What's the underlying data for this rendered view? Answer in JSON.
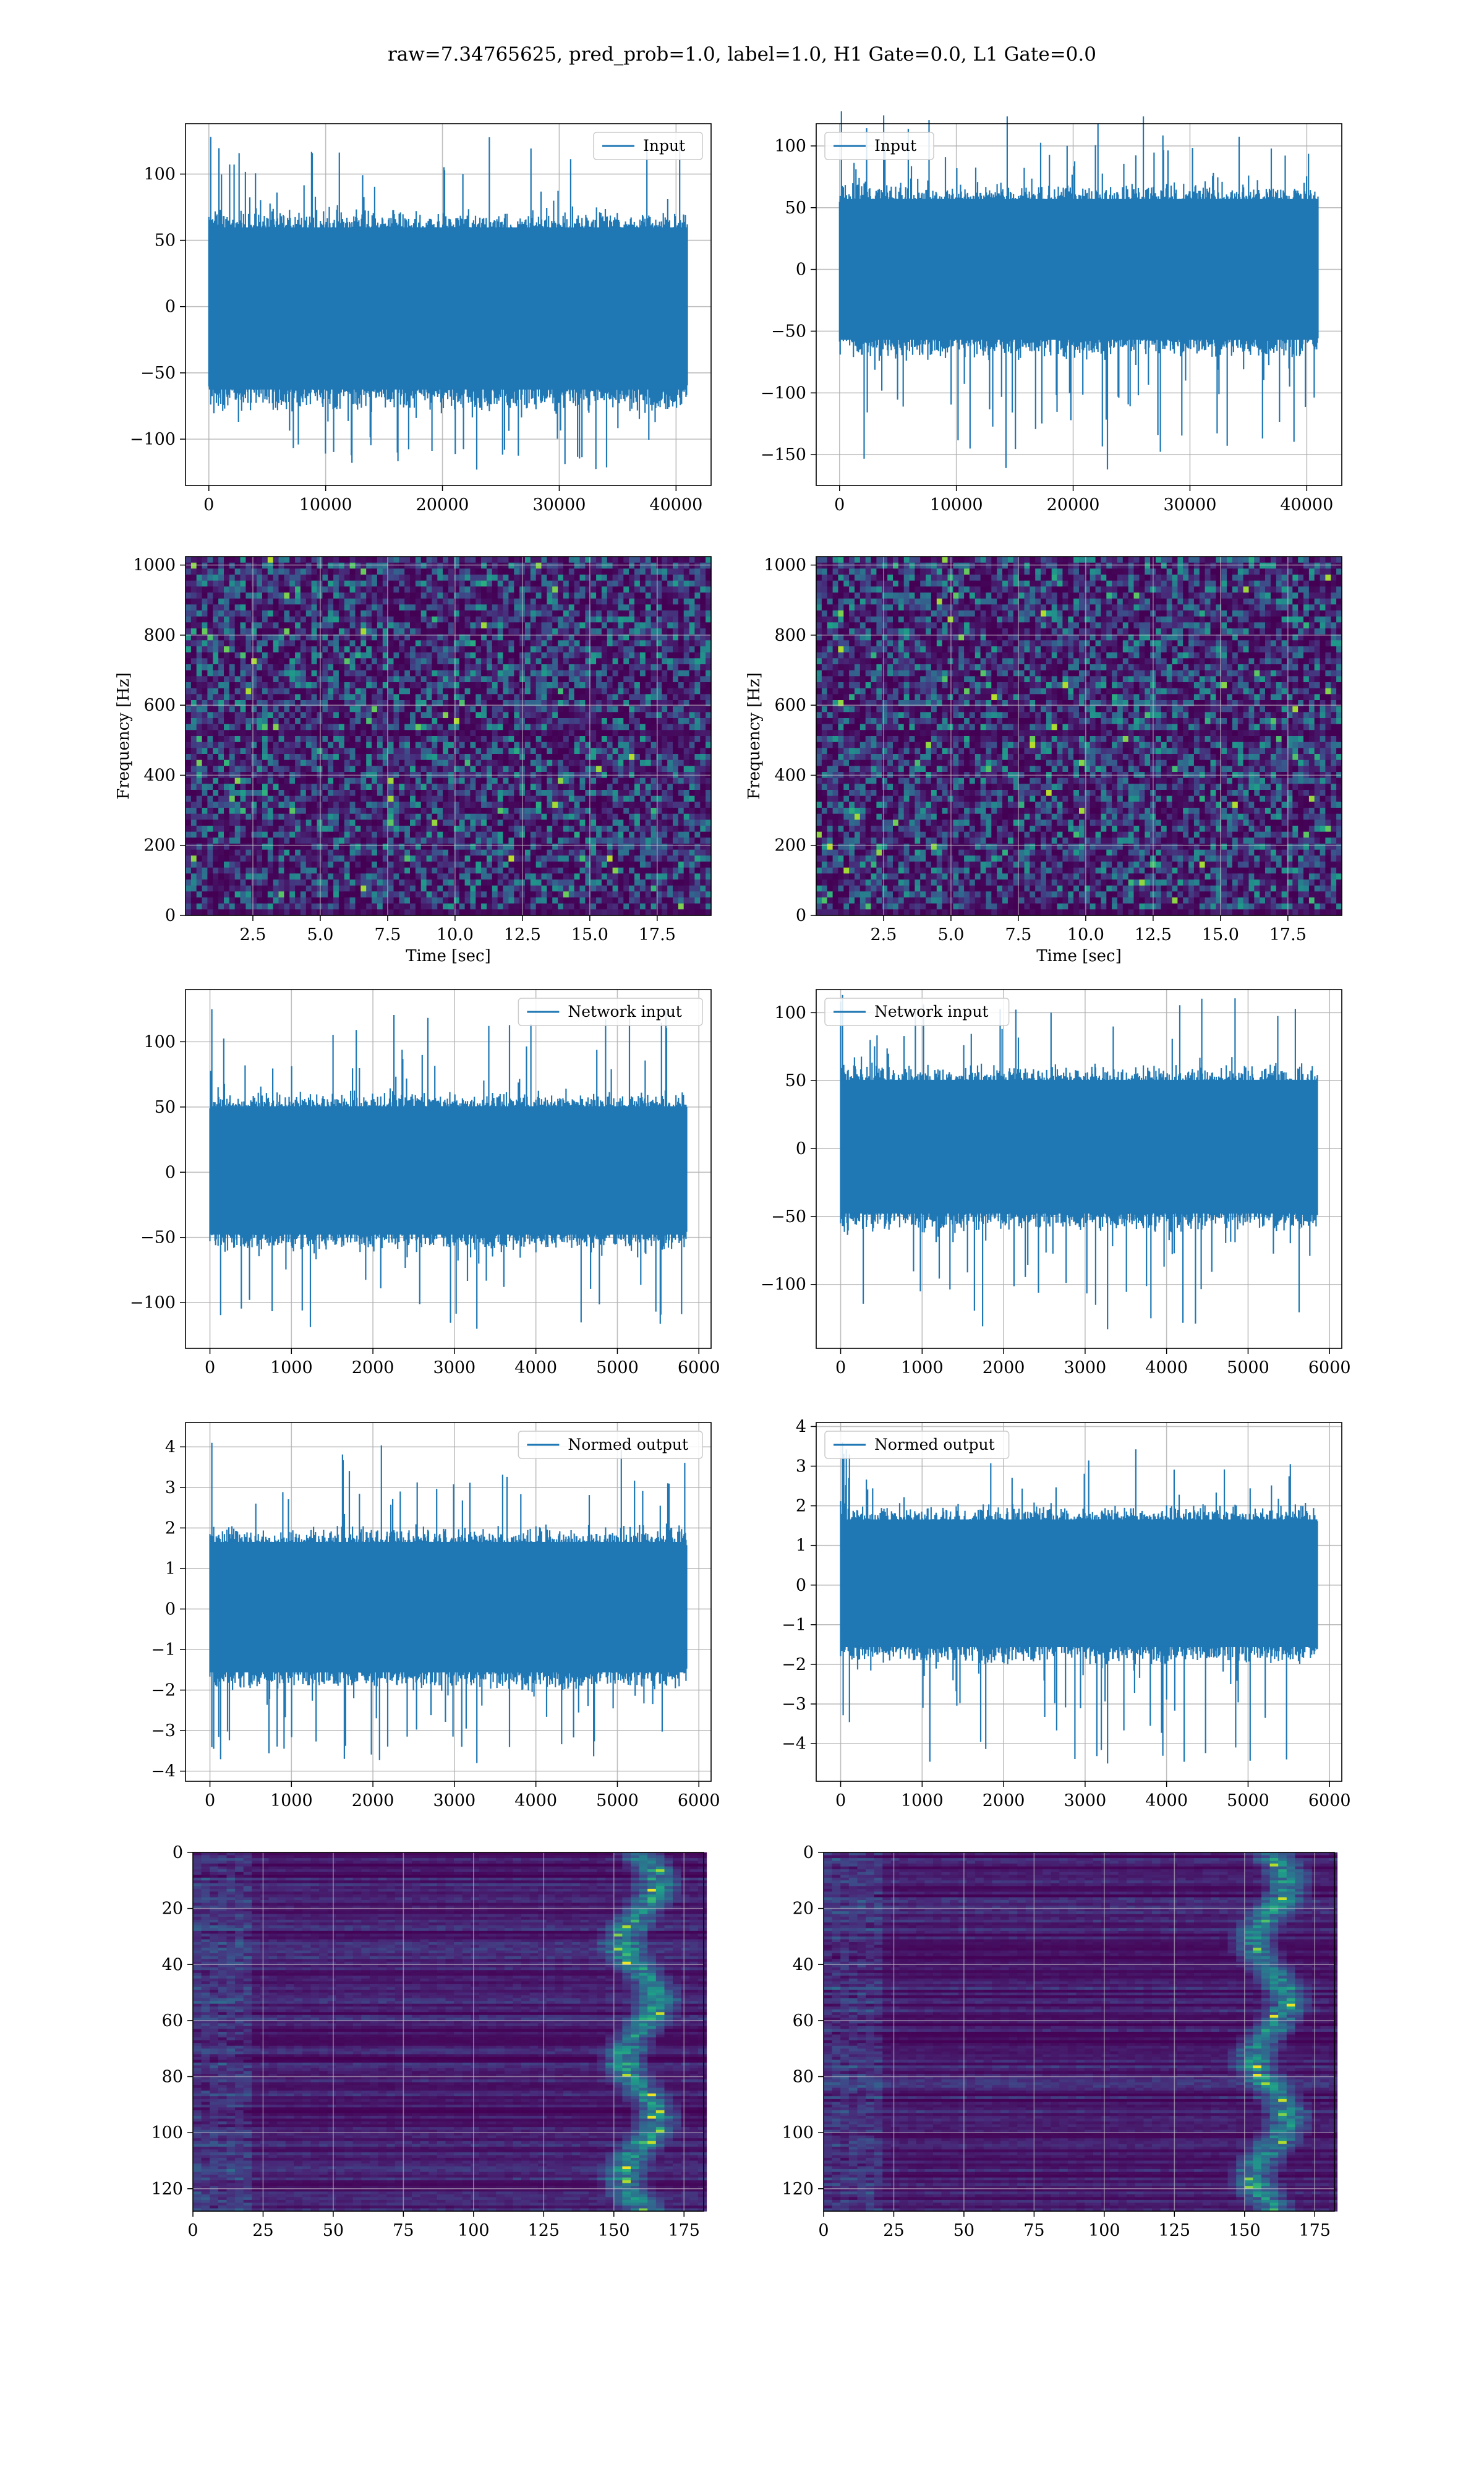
{
  "title": "raw=7.34765625, pred_prob=1.0, label=1.0, H1 Gate=0.0, L1 Gate=0.0",
  "colors": {
    "line": "#1f77b4",
    "grid": "#b0b0b0",
    "viridis_low": "#440154",
    "viridis_high": "#fde725"
  },
  "chart_data": [
    {
      "id": "input_h1",
      "type": "line",
      "legend": "Input",
      "legend_loc": "upper right",
      "xlim": [
        -2000,
        43000
      ],
      "ylim": [
        -135,
        138
      ],
      "xticks": [
        0,
        10000,
        20000,
        30000,
        40000
      ],
      "yticks": [
        -100,
        -50,
        0,
        50,
        100
      ],
      "n_samples": 40960,
      "envelope": {
        "typical_max": 65,
        "typical_min": -68,
        "peak_max": 128,
        "peak_min": -123
      }
    },
    {
      "id": "input_l1",
      "type": "line",
      "legend": "Input",
      "legend_loc": "upper left",
      "xlim": [
        -2000,
        43000
      ],
      "ylim": [
        -175,
        118
      ],
      "xticks": [
        0,
        10000,
        20000,
        30000,
        40000
      ],
      "yticks": [
        -150,
        -100,
        -50,
        0,
        50,
        100
      ],
      "n_samples": 40960,
      "envelope": {
        "typical_max": 62,
        "typical_min": -62,
        "peak_max": 128,
        "peak_min": -162
      }
    },
    {
      "id": "spec_h1",
      "type": "heatmap",
      "xlabel": "Time [sec]",
      "ylabel": "Frequency [Hz]",
      "xlim": [
        0.0,
        19.5
      ],
      "ylim": [
        0,
        1024
      ],
      "xticks": [
        2.5,
        5.0,
        7.5,
        10.0,
        12.5,
        15.0,
        17.5
      ],
      "yticks": [
        0,
        200,
        400,
        600,
        800,
        1000
      ]
    },
    {
      "id": "spec_l1",
      "type": "heatmap",
      "xlabel": "Time [sec]",
      "ylabel": "Frequency [Hz]",
      "xlim": [
        0.0,
        19.5
      ],
      "ylim": [
        0,
        1024
      ],
      "xticks": [
        2.5,
        5.0,
        7.5,
        10.0,
        12.5,
        15.0,
        17.5
      ],
      "yticks": [
        0,
        200,
        400,
        600,
        800,
        1000
      ]
    },
    {
      "id": "net_h1",
      "type": "line",
      "legend": "Network input",
      "legend_loc": "upper right",
      "xlim": [
        -300,
        6150
      ],
      "ylim": [
        -135,
        140
      ],
      "xticks": [
        0,
        1000,
        2000,
        3000,
        4000,
        5000,
        6000
      ],
      "yticks": [
        -100,
        -50,
        0,
        50,
        100
      ],
      "n_samples": 5850,
      "envelope": {
        "typical_max": 55,
        "typical_min": -52,
        "peak_max": 125,
        "peak_min": -120
      }
    },
    {
      "id": "net_l1",
      "type": "line",
      "legend": "Network input",
      "legend_loc": "upper left",
      "xlim": [
        -300,
        6150
      ],
      "ylim": [
        -147,
        117
      ],
      "xticks": [
        0,
        1000,
        2000,
        3000,
        4000,
        5000,
        6000
      ],
      "yticks": [
        -100,
        -50,
        0,
        50,
        100
      ],
      "n_samples": 5850,
      "envelope": {
        "typical_max": 55,
        "typical_min": -52,
        "peak_max": 113,
        "peak_min": -133
      }
    },
    {
      "id": "out_h1",
      "type": "line",
      "legend": "Normed output",
      "legend_loc": "upper right",
      "xlim": [
        -300,
        6150
      ],
      "ylim": [
        -4.25,
        4.6
      ],
      "xticks": [
        0,
        1000,
        2000,
        3000,
        4000,
        5000,
        6000
      ],
      "yticks": [
        -4,
        -3,
        -2,
        -1,
        0,
        1,
        2,
        3,
        4
      ],
      "n_samples": 5850,
      "envelope": {
        "typical_max": 1.8,
        "typical_min": -1.7,
        "peak_max": 4.1,
        "peak_min": -3.8
      }
    },
    {
      "id": "out_l1",
      "type": "line",
      "legend": "Normed output",
      "legend_loc": "upper left",
      "xlim": [
        -300,
        6150
      ],
      "ylim": [
        -4.95,
        4.1
      ],
      "xticks": [
        0,
        1000,
        2000,
        3000,
        4000,
        5000,
        6000
      ],
      "yticks": [
        -4,
        -3,
        -2,
        -1,
        0,
        1,
        2,
        3,
        4
      ],
      "n_samples": 5850,
      "envelope": {
        "typical_max": 1.8,
        "typical_min": -1.7,
        "peak_max": 3.6,
        "peak_min": -4.5
      }
    },
    {
      "id": "feat_h1",
      "type": "heatmap",
      "xlim": [
        0,
        182
      ],
      "ylim": [
        0,
        128
      ],
      "xticks": [
        0,
        25,
        50,
        75,
        100,
        125,
        150,
        175
      ],
      "yticks": [
        0,
        20,
        40,
        60,
        80,
        100,
        120
      ]
    },
    {
      "id": "feat_l1",
      "type": "heatmap",
      "xlim": [
        0,
        182
      ],
      "ylim": [
        0,
        128
      ],
      "xticks": [
        0,
        25,
        50,
        75,
        100,
        125,
        150,
        175
      ],
      "yticks": [
        0,
        20,
        40,
        60,
        80,
        100,
        120
      ]
    }
  ]
}
